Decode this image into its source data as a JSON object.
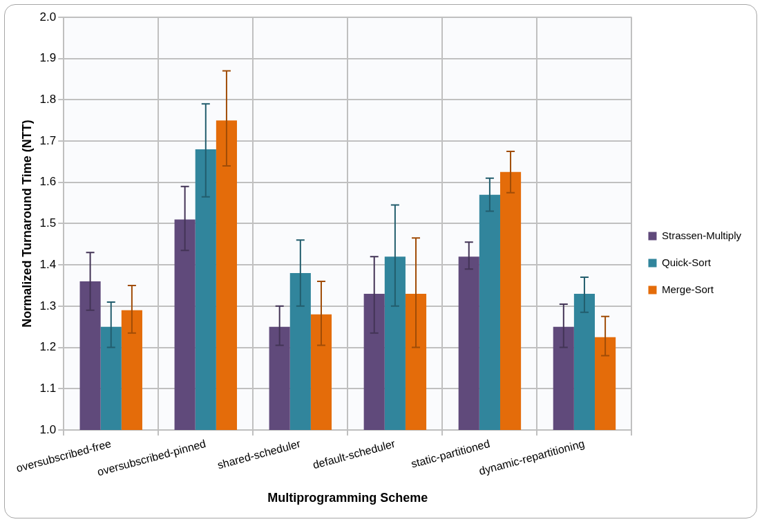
{
  "chart_data": {
    "type": "bar",
    "xlabel": "Multiprogramming Scheme",
    "ylabel": "Normalized Turnaround Time (NTT)",
    "categories": [
      "oversubscribed-free",
      "oversubscribed-pinned",
      "shared-scheduler",
      "default-scheduler",
      "static-partitioned",
      "dynamic-repartitioning"
    ],
    "series": [
      {
        "name": "Strassen-Multiply",
        "color": "#604a7b",
        "values": [
          1.36,
          1.51,
          1.25,
          1.33,
          1.42,
          1.25
        ],
        "errors": [
          [
            1.29,
            1.43
          ],
          [
            1.435,
            1.59
          ],
          [
            1.205,
            1.3
          ],
          [
            1.235,
            1.42
          ],
          [
            1.39,
            1.455
          ],
          [
            1.2,
            1.305
          ]
        ]
      },
      {
        "name": "Quick-Sort",
        "color": "#31859c",
        "values": [
          1.25,
          1.68,
          1.38,
          1.42,
          1.57,
          1.33
        ],
        "errors": [
          [
            1.2,
            1.31
          ],
          [
            1.565,
            1.79
          ],
          [
            1.3,
            1.46
          ],
          [
            1.3,
            1.545
          ],
          [
            1.53,
            1.61
          ],
          [
            1.285,
            1.37
          ]
        ]
      },
      {
        "name": "Merge-Sort",
        "color": "#e46c0a",
        "values": [
          1.29,
          1.75,
          1.28,
          1.33,
          1.625,
          1.225
        ],
        "errors": [
          [
            1.235,
            1.35
          ],
          [
            1.64,
            1.87
          ],
          [
            1.205,
            1.36
          ],
          [
            1.2,
            1.465
          ],
          [
            1.575,
            1.675
          ],
          [
            1.18,
            1.275
          ]
        ]
      }
    ],
    "ylim": [
      1.0,
      2.0
    ],
    "yticks": [
      {
        "value": 1,
        "label": "1.0"
      },
      1.1,
      1.2,
      1.3,
      1.4,
      1.5,
      1.6,
      1.7,
      1.8,
      1.9,
      {
        "value": 2,
        "label": "2.0"
      }
    ],
    "grid": true,
    "legend": "right"
  }
}
